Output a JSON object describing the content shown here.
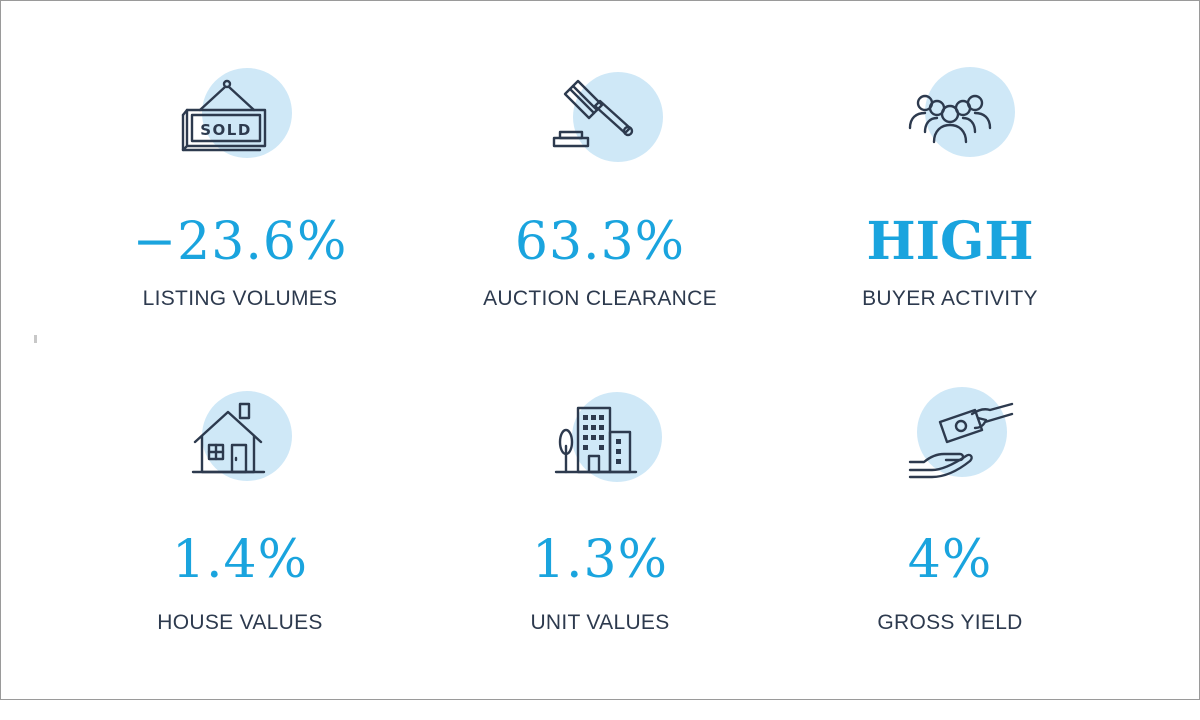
{
  "stats": [
    {
      "value": "−23.6%",
      "label": "LISTING VOLUMES",
      "icon": "sold-sign-icon"
    },
    {
      "value": "63.3%",
      "label": "AUCTION CLEARANCE",
      "icon": "gavel-icon"
    },
    {
      "value": "HIGH",
      "label": "BUYER ACTIVITY",
      "icon": "group-people-icon"
    },
    {
      "value": "1.4%",
      "label": "HOUSE VALUES",
      "icon": "house-icon"
    },
    {
      "value": "1.3%",
      "label": "UNIT VALUES",
      "icon": "apartment-building-icon"
    },
    {
      "value": "4%",
      "label": "GROSS YIELD",
      "icon": "money-hand-icon"
    }
  ],
  "sold_sign_text": "SOLD",
  "colors": {
    "accent": "#1aa4de",
    "circle": "#cfe8f7",
    "icon_stroke": "#2d3a4e",
    "label": "#2d3a4e"
  }
}
